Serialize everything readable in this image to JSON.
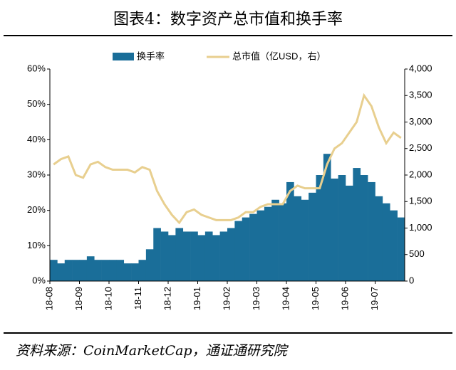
{
  "chart_data": {
    "type": "bar_line",
    "title": "图表4：数字资产总市值和换手率",
    "source": "资料来源：CoinMarketCap，通证通研究院",
    "categories": [
      "18-08",
      null,
      null,
      null,
      "18-09",
      null,
      null,
      null,
      "18-10",
      null,
      null,
      null,
      "18-11",
      null,
      null,
      null,
      "18-12",
      null,
      null,
      null,
      "19-01",
      null,
      null,
      null,
      "19-02",
      null,
      null,
      null,
      "19-03",
      null,
      null,
      null,
      "19-04",
      null,
      null,
      null,
      "19-05",
      null,
      null,
      null,
      "19-06",
      null,
      null,
      null,
      "19-07",
      null,
      null,
      null
    ],
    "series": [
      {
        "name": "换手率",
        "type": "bar",
        "color": "#1a6e99",
        "values": [
          6,
          5,
          6,
          6,
          6,
          7,
          6,
          6,
          6,
          6,
          5,
          5,
          6,
          9,
          15,
          14,
          13,
          15,
          14,
          14,
          13,
          14,
          13,
          14,
          15,
          17,
          18,
          19,
          20,
          21,
          23,
          22,
          28,
          24,
          23,
          25,
          30,
          36,
          29,
          30,
          27,
          32,
          30,
          28,
          24,
          22,
          20,
          18
        ]
      },
      {
        "name": "总市值（亿USD，右）",
        "type": "line",
        "axis": "y2",
        "color": "#e8cf8f",
        "values": [
          2200,
          2300,
          2350,
          2000,
          1950,
          2200,
          2250,
          2150,
          2100,
          2100,
          2100,
          2050,
          2150,
          2100,
          1700,
          1450,
          1250,
          1100,
          1300,
          1350,
          1250,
          1200,
          1150,
          1150,
          1150,
          1200,
          1300,
          1300,
          1400,
          1450,
          1450,
          1450,
          1700,
          1800,
          1750,
          1750,
          1750,
          2200,
          2500,
          2600,
          2800,
          3000,
          3500,
          3300,
          2900,
          2600,
          2800,
          2700
        ]
      }
    ],
    "ylim": [
      0,
      60
    ],
    "yticks": [
      {
        "value": 0,
        "label": "0%"
      },
      {
        "value": 10,
        "label": "10%"
      },
      {
        "value": 20,
        "label": "20%"
      },
      {
        "value": 30,
        "label": "30%"
      },
      {
        "value": 40,
        "label": "40%"
      },
      {
        "value": 50,
        "label": "50%"
      },
      {
        "value": 60,
        "label": "60%"
      }
    ],
    "y2lim": [
      0,
      4000
    ],
    "y2ticks": [
      0,
      500,
      {
        "value": 1000,
        "label": "1,000"
      },
      {
        "value": 1500,
        "label": "1,500"
      },
      {
        "value": 2000,
        "label": "2,000"
      },
      {
        "value": 2500,
        "label": "2,500"
      },
      {
        "value": 3000,
        "label": "3,000"
      },
      {
        "value": 3500,
        "label": "3,500"
      },
      {
        "value": 4000,
        "label": "4,000"
      }
    ]
  }
}
